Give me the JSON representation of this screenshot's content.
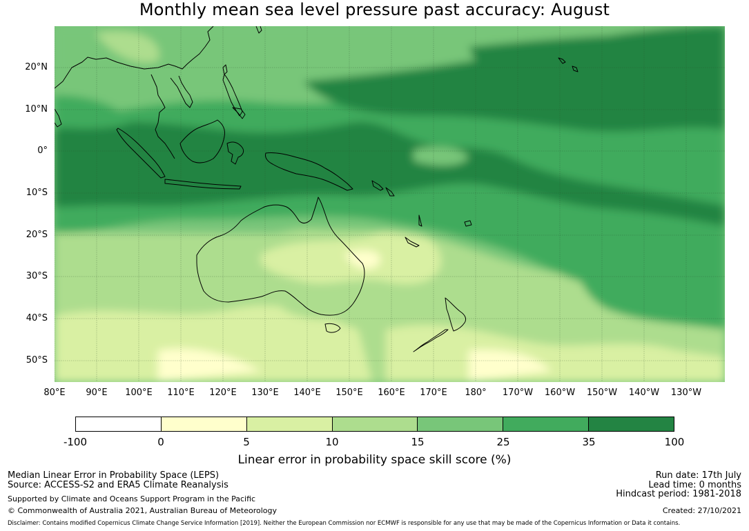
{
  "title": "Monthly mean sea level pressure past accuracy: August",
  "map": {
    "lat_labels": [
      "20°N",
      "10°N",
      "0°",
      "10°S",
      "20°S",
      "30°S",
      "40°S",
      "50°S"
    ],
    "lon_labels": [
      "80°E",
      "90°E",
      "100°E",
      "110°E",
      "120°E",
      "130°E",
      "140°E",
      "150°E",
      "160°E",
      "170°E",
      "180°",
      "170°W",
      "160°W",
      "150°W",
      "140°W",
      "130°W"
    ]
  },
  "colorbar": {
    "label": "Linear error in probability space skill score (%)",
    "ticks": [
      "-100",
      "0",
      "5",
      "10",
      "15",
      "25",
      "35",
      "100"
    ],
    "colors": [
      "#ffffff",
      "#ffffcc",
      "#d9f0a3",
      "#addd8e",
      "#78c679",
      "#41ab5d",
      "#238443"
    ]
  },
  "footer": {
    "line1": "Median Linear Error in Probability Space (LEPS)",
    "line2": "Source: ACCESS-S2 and ERA5 Climate Reanalysis",
    "line3": "Supported by Climate and Oceans Support Program in the Pacific",
    "line4": "© Commonwealth of Australia 2021, Australian Bureau of Meteorology",
    "run_date": "Run date: 17th July",
    "lead_time": "Lead time: 0 months",
    "hindcast": "Hindcast period: 1981-2018",
    "created": "Created: 27/10/2021",
    "disclaimer": "Disclaimer: Contains modified Copernicus Climate Change Service Information [2019]. Neither the European Commission nor ECMWF is responsible for any use that may be made of the Copernicus Information or Data it contains."
  }
}
